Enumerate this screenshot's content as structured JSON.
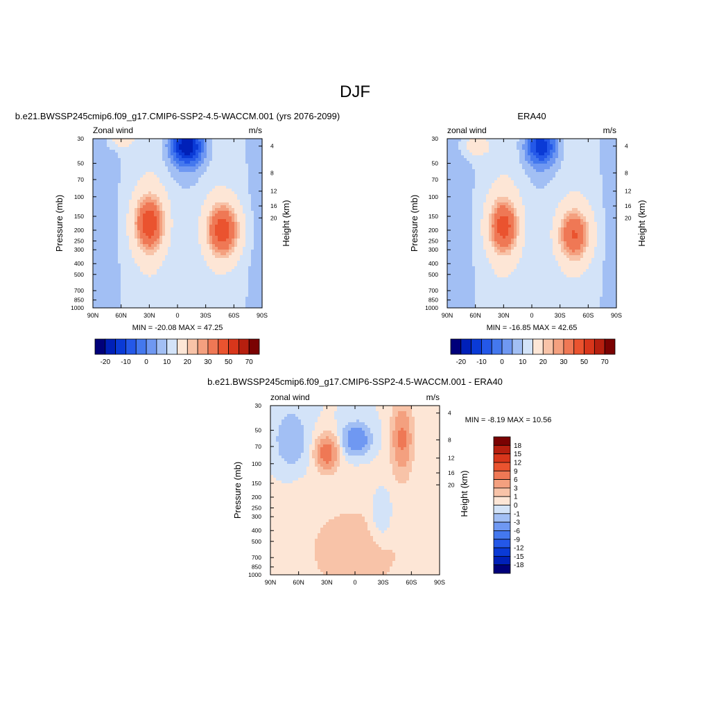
{
  "figure": {
    "title": "DJF"
  },
  "chart_data": [
    {
      "id": "model",
      "type": "heatmap",
      "title": "b.e21.BWSSP245cmip6.f09_g17.CMIP6-SSP2-4.5-WACCM.001 (yrs 2076-2099)",
      "left_label": "Zonal wind",
      "right_label": "m/s",
      "ylabel": "Pressure (mb)",
      "ylabel_right": "Height (km)",
      "x_ticks": [
        "90N",
        "60N",
        "30N",
        "0",
        "30S",
        "60S",
        "90S"
      ],
      "y_ticks": [
        "30",
        "50",
        "70",
        "100",
        "150",
        "200",
        "250",
        "300",
        "400",
        "500",
        "700",
        "850",
        "1000"
      ],
      "height_ticks": [
        "20",
        "16",
        "12",
        "8",
        "4"
      ],
      "stats_text": "MIN = -20.08  MAX =  47.25",
      "colorbar_labels": [
        "-20",
        "-10",
        "0",
        "10",
        "20",
        "30",
        "50",
        "70"
      ],
      "colorbar_orientation": "horizontal",
      "colors": [
        "#00007a",
        "#0020b8",
        "#0a3ad6",
        "#2458e8",
        "#4478ee",
        "#6f98f2",
        "#a2bff4",
        "#d3e3f8",
        "#fde6d6",
        "#f8c3a8",
        "#f4a07f",
        "#ef7855",
        "#ea532f",
        "#d8361b",
        "#b61f0f",
        "#7a0202"
      ],
      "levels": [
        -25,
        -20,
        -15,
        -10,
        -5,
        0,
        5,
        10,
        15,
        20,
        25,
        30,
        40,
        50,
        60,
        70
      ],
      "min": -20.08,
      "max": 47.25,
      "features": [
        {
          "lat": 30,
          "p": 175,
          "amp": 40,
          "wlat": 11,
          "wlog": 0.4
        },
        {
          "lat": -48,
          "p": 200,
          "amp": 40,
          "wlat": 12,
          "wlog": 0.38
        },
        {
          "lat": -10,
          "p": 35,
          "amp": -30,
          "wlat": 13,
          "wlog": 0.3
        },
        {
          "lat": 60,
          "p": 30,
          "amp": 12,
          "wlat": 8,
          "wlog": 0.12
        }
      ]
    },
    {
      "id": "obs",
      "type": "heatmap",
      "title": "ERA40",
      "left_label": "zonal wind",
      "right_label": "m/s",
      "ylabel": "Pressure (mb)",
      "ylabel_right": "Height (km)",
      "x_ticks": [
        "90N",
        "60N",
        "30N",
        "0",
        "30S",
        "60S",
        "90S"
      ],
      "y_ticks": [
        "30",
        "50",
        "70",
        "100",
        "150",
        "200",
        "250",
        "300",
        "400",
        "500",
        "700",
        "850",
        "1000"
      ],
      "height_ticks": [
        "20",
        "16",
        "12",
        "8",
        "4"
      ],
      "stats_text": "MIN = -16.85  MAX =  42.65",
      "colorbar_labels": [
        "-20",
        "-10",
        "0",
        "10",
        "20",
        "30",
        "50",
        "70"
      ],
      "colorbar_orientation": "horizontal",
      "colors": [
        "#00007a",
        "#0020b8",
        "#0a3ad6",
        "#2458e8",
        "#4478ee",
        "#6f98f2",
        "#a2bff4",
        "#d3e3f8",
        "#fde6d6",
        "#f8c3a8",
        "#f4a07f",
        "#ef7855",
        "#ea532f",
        "#d8361b",
        "#b61f0f",
        "#7a0202"
      ],
      "levels": [
        -25,
        -20,
        -15,
        -10,
        -5,
        0,
        5,
        10,
        15,
        20,
        25,
        30,
        40,
        50,
        60,
        70
      ],
      "min": -16.85,
      "max": 42.65,
      "features": [
        {
          "lat": 30,
          "p": 185,
          "amp": 37,
          "wlat": 11,
          "wlog": 0.4
        },
        {
          "lat": -45,
          "p": 220,
          "amp": 33,
          "wlat": 12,
          "wlog": 0.38
        },
        {
          "lat": -10,
          "p": 35,
          "amp": -24,
          "wlat": 12,
          "wlog": 0.3
        },
        {
          "lat": 60,
          "p": 35,
          "amp": 10,
          "wlat": 9,
          "wlog": 0.15
        }
      ]
    },
    {
      "id": "diff",
      "type": "heatmap",
      "title": "b.e21.BWSSP245cmip6.f09_g17.CMIP6-SSP2-4.5-WACCM.001 - ERA40",
      "left_label": "zonal wind",
      "right_label": "m/s",
      "ylabel": "Pressure (mb)",
      "ylabel_right": "Height (km)",
      "x_ticks": [
        "90N",
        "60N",
        "30N",
        "0",
        "30S",
        "60S",
        "90S"
      ],
      "y_ticks": [
        "30",
        "50",
        "70",
        "100",
        "150",
        "200",
        "250",
        "300",
        "400",
        "500",
        "700",
        "850",
        "1000"
      ],
      "height_ticks": [
        "20",
        "16",
        "12",
        "8",
        "4"
      ],
      "stats_text": "MIN =  -8.19  MAX =  10.56",
      "colorbar_labels": [
        "18",
        "15",
        "12",
        "9",
        "6",
        "3",
        "1",
        "0",
        "-1",
        "-3",
        "-6",
        "-9",
        "-12",
        "-15",
        "-18"
      ],
      "colorbar_orientation": "vertical",
      "colors": [
        "#00007a",
        "#0020b8",
        "#0a3ad6",
        "#2458e8",
        "#4478ee",
        "#6f98f2",
        "#a2bff4",
        "#d3e3f8",
        "#fde6d6",
        "#f8c3a8",
        "#f4a07f",
        "#ef7855",
        "#ea532f",
        "#d8361b",
        "#b61f0f",
        "#7a0202"
      ],
      "levels": [
        -18,
        -15,
        -12,
        -9,
        -6,
        -3,
        -1,
        0,
        1,
        3,
        6,
        9,
        12,
        15,
        18
      ],
      "min": -8.19,
      "max": 10.56,
      "features": [
        {
          "lat": 30,
          "p": 80,
          "amp": 9,
          "wlat": 7,
          "wlog": 0.22
        },
        {
          "lat": -50,
          "p": 60,
          "amp": 7,
          "wlat": 7,
          "wlog": 0.45
        },
        {
          "lat": -2,
          "p": 60,
          "amp": -6,
          "wlat": 9,
          "wlog": 0.2
        },
        {
          "lat": 68,
          "p": 60,
          "amp": -3,
          "wlat": 10,
          "wlog": 0.35
        },
        {
          "lat": 0,
          "p": 600,
          "amp": 1.6,
          "wlat": 45,
          "wlog": 0.8
        },
        {
          "lat": -28,
          "p": 300,
          "amp": -1.8,
          "wlat": 8,
          "wlog": 0.35
        }
      ]
    }
  ]
}
